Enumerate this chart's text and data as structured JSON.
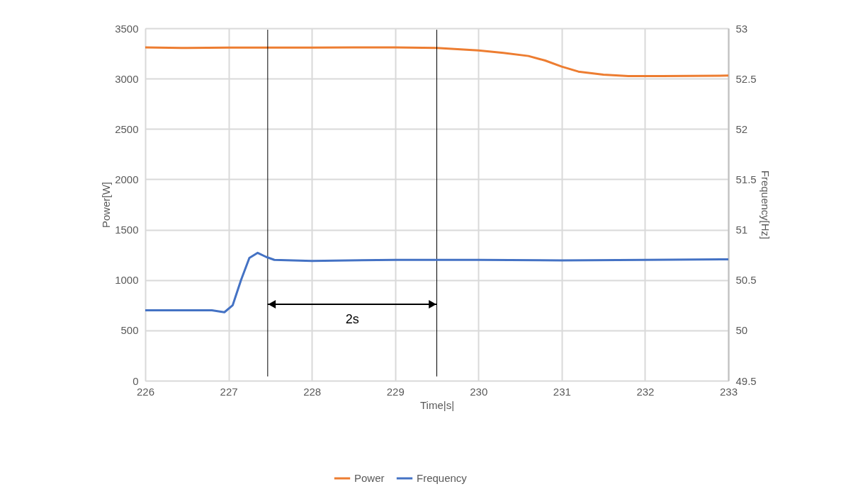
{
  "chart_data": {
    "type": "line",
    "xlabel": "Time|s|",
    "ylabel": "Power[W]",
    "y2label": "Frequency[Hz]",
    "xlim": [
      226,
      233
    ],
    "xticks": [
      226,
      227,
      228,
      229,
      230,
      231,
      232,
      233
    ],
    "ylim": [
      0,
      3500
    ],
    "yticks": [
      0,
      500,
      1000,
      1500,
      2000,
      2500,
      3000,
      3500
    ],
    "y2lim": [
      49.5,
      53
    ],
    "y2ticks": [
      49.5,
      50,
      50.5,
      51,
      51.5,
      52,
      52.5,
      53
    ],
    "series": [
      {
        "name": "Power",
        "color": "#ed7d31",
        "x": [
          226,
          226.5,
          227,
          228,
          228.5,
          229,
          229.5,
          230,
          230.3,
          230.6,
          230.8,
          231,
          231.2,
          231.5,
          231.8,
          232.2,
          233
        ],
        "values": [
          3310,
          3305,
          3308,
          3308,
          3310,
          3310,
          3305,
          3280,
          3255,
          3225,
          3180,
          3120,
          3070,
          3040,
          3025,
          3025,
          3030
        ]
      },
      {
        "name": "Frequency",
        "color": "#4472c4",
        "axis": "y2",
        "x": [
          226,
          226.8,
          226.95,
          227.05,
          227.15,
          227.25,
          227.35,
          227.45,
          227.55,
          228,
          229,
          230,
          231,
          232,
          233
        ],
        "values": [
          50.2,
          50.2,
          50.18,
          50.25,
          50.5,
          50.72,
          50.77,
          50.73,
          50.7,
          50.69,
          50.7,
          50.7,
          50.695,
          50.7,
          50.705
        ]
      }
    ],
    "ref_lines": [
      {
        "axis": "x",
        "value": 227.47,
        "color": "#000000"
      },
      {
        "axis": "x",
        "value": 229.5,
        "color": "#000000"
      }
    ],
    "annotations": [
      "2s"
    ],
    "grid": true,
    "legend": "bottom",
    "line_style": "solid",
    "marker": "none"
  }
}
